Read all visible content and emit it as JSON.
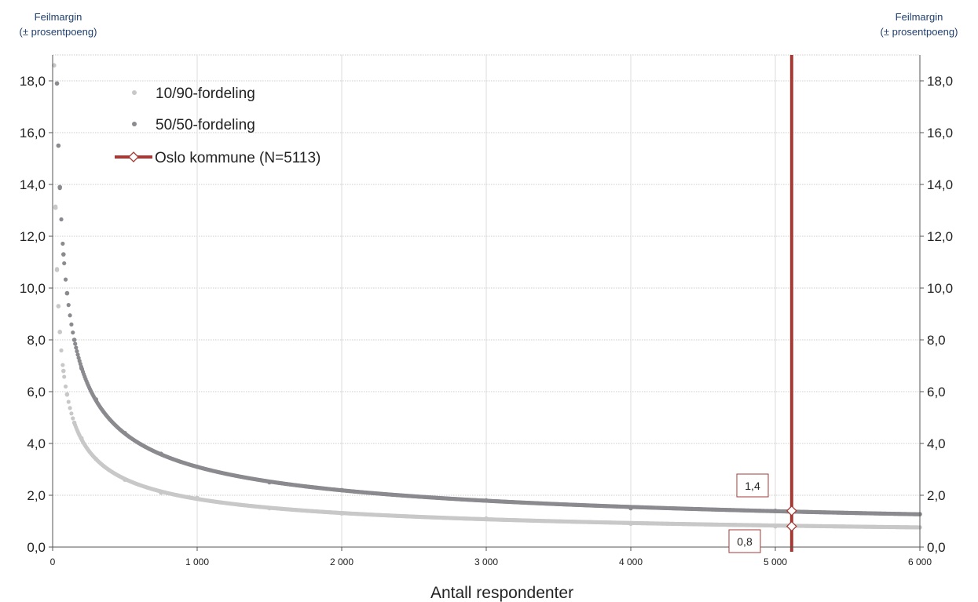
{
  "y_unit_label_left": [
    "Feilmargin",
    "(± prosentpoeng)"
  ],
  "y_unit_label_right": [
    "Feilmargin",
    "(± prosentpoeng)"
  ],
  "chart_data": {
    "type": "scatter",
    "xlabel": "Antall respondenter",
    "ylabel": "Feilmargin (± prosentpoeng)",
    "xlim": [
      0,
      6000
    ],
    "ylim": [
      0,
      19
    ],
    "x_ticks": [
      0,
      1000,
      2000,
      3000,
      4000,
      5000,
      6000
    ],
    "x_tick_labels": [
      "0",
      "1 000",
      "2 000",
      "3 000",
      "4 000",
      "5 000",
      "6 000"
    ],
    "y_ticks": [
      0,
      2,
      4,
      6,
      8,
      10,
      12,
      14,
      16,
      18
    ],
    "y_tick_labels": [
      "0,0",
      "2,0",
      "4,0",
      "6,0",
      "8,0",
      "10,0",
      "12,0",
      "14,0",
      "16,0",
      "18,0"
    ],
    "grid": true,
    "legend_position": "top-left",
    "series": [
      {
        "name": "10/90-fordeling",
        "color": "#c8c8c8",
        "formula_note": "1.96*sqrt(0.1*0.9/n)*100",
        "x": [
          10,
          20,
          30,
          40,
          50,
          75,
          100,
          150,
          200,
          300,
          500,
          750,
          1000,
          1500,
          2000,
          3000,
          4000,
          5000,
          6000
        ],
        "y": [
          18.6,
          13.1,
          10.7,
          9.3,
          8.3,
          6.8,
          5.9,
          4.8,
          4.2,
          3.4,
          2.6,
          2.1,
          1.9,
          1.5,
          1.3,
          1.1,
          0.9,
          0.8,
          0.76
        ]
      },
      {
        "name": "50/50-fordeling",
        "color": "#8a8a8f",
        "formula_note": "1.96*sqrt(0.5*0.5/n)*100",
        "x": [
          30,
          40,
          50,
          75,
          100,
          150,
          200,
          300,
          500,
          750,
          1000,
          1500,
          2000,
          3000,
          4000,
          5000,
          6000
        ],
        "y": [
          17.9,
          15.5,
          13.9,
          11.3,
          9.8,
          8.0,
          6.9,
          5.7,
          4.4,
          3.6,
          3.1,
          2.5,
          2.2,
          1.8,
          1.5,
          1.4,
          1.27
        ]
      },
      {
        "name": "Oslo kommune (N=5113)",
        "color": "#a33a35",
        "type": "vertical-line",
        "x": 5113,
        "markers": [
          1.4,
          0.8
        ]
      }
    ],
    "annotations": [
      {
        "text": "1,4",
        "x": 5113,
        "y": 1.4
      },
      {
        "text": "0,8",
        "x": 5113,
        "y": 0.8
      }
    ]
  }
}
